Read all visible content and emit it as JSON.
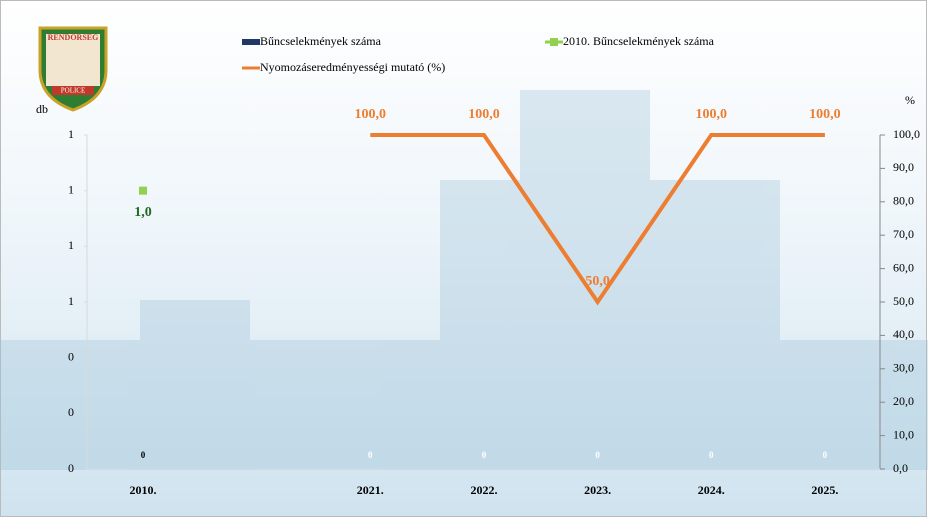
{
  "chart_data": {
    "type": "combo",
    "badge": [
      "RENDŐRSÉG",
      "POLICE"
    ],
    "ylabel": "db",
    "y2label": "%",
    "categories": [
      "2010.",
      null,
      "2021.",
      "2022.",
      "2023.",
      "2024.",
      "2025."
    ],
    "ylim": [
      0,
      1.2
    ],
    "yticks": [
      {
        "value": 0,
        "label": "0"
      },
      {
        "value": 0.2,
        "label": "0"
      },
      {
        "value": 0.4,
        "label": "0"
      },
      {
        "value": 0.6,
        "label": "1"
      },
      {
        "value": 0.8,
        "label": "1"
      },
      {
        "value": 1.0,
        "label": "1"
      },
      {
        "value": 1.2,
        "label": "1"
      }
    ],
    "y2lim": [
      0,
      100
    ],
    "y2ticks": [
      {
        "value": 0,
        "label": "0,0"
      },
      {
        "value": 10,
        "label": "10,0"
      },
      {
        "value": 20,
        "label": "20,0"
      },
      {
        "value": 30,
        "label": "30,0"
      },
      {
        "value": 40,
        "label": "40,0"
      },
      {
        "value": 50,
        "label": "50,0"
      },
      {
        "value": 60,
        "label": "60,0"
      },
      {
        "value": 70,
        "label": "70,0"
      },
      {
        "value": 80,
        "label": "80,0"
      },
      {
        "value": 90,
        "label": "90,0"
      },
      {
        "value": 100,
        "label": "100,0"
      }
    ],
    "series": [
      {
        "name": "Bűncselekmények száma",
        "type": "bar",
        "color": "#1f3864",
        "values": [
          0,
          null,
          0,
          0,
          0,
          0,
          0
        ]
      },
      {
        "name": "2010. Bűncselekmények száma",
        "type": "marker",
        "color": "#92d050",
        "values": [
          1,
          null,
          null,
          null,
          null,
          null,
          null
        ],
        "value_labels": [
          "1,0",
          null,
          null,
          null,
          null,
          null,
          null
        ]
      },
      {
        "name": "Nyomozáseredményességi mutató (%)",
        "type": "line",
        "axis": "y2",
        "color": "#ed7d31",
        "values": [
          null,
          null,
          100,
          100,
          50,
          100,
          100
        ],
        "value_labels": [
          null,
          null,
          "100,0",
          "100,0",
          "50,0",
          "100,0",
          "100,0"
        ]
      }
    ]
  }
}
